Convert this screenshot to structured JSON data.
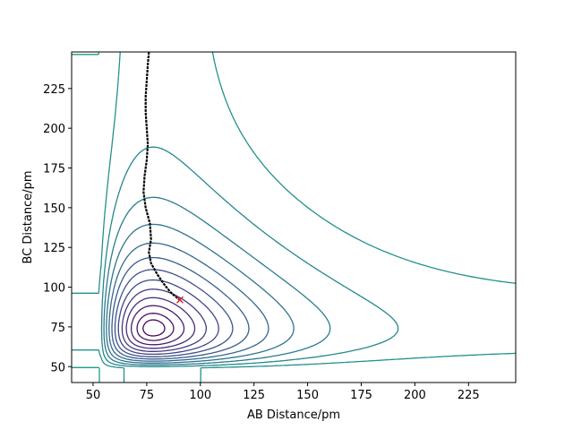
{
  "chart_data": {
    "type": "contour",
    "title": "",
    "xlabel": "AB Distance/pm",
    "ylabel": "BC Distance/pm",
    "xlim": [
      40,
      247
    ],
    "ylim": [
      40,
      248
    ],
    "xticks": [
      50,
      75,
      100,
      125,
      150,
      175,
      200,
      225
    ],
    "yticks": [
      50,
      75,
      100,
      125,
      150,
      175,
      200,
      225
    ],
    "grid": false,
    "legend": "none",
    "contours": {
      "colormap": "viridis",
      "low_color": "#440154",
      "high_color": "#fde725",
      "levels": 25,
      "minimum": [
        78,
        74
      ]
    },
    "trajectory": {
      "color": "#000000",
      "points": [
        [
          76,
          248
        ],
        [
          75.5,
          240
        ],
        [
          75,
          230
        ],
        [
          74.5,
          220
        ],
        [
          74.5,
          210
        ],
        [
          75,
          200
        ],
        [
          75.5,
          190
        ],
        [
          75,
          180
        ],
        [
          74,
          170
        ],
        [
          73.5,
          160
        ],
        [
          74.5,
          150
        ],
        [
          76.5,
          140
        ],
        [
          77,
          130
        ],
        [
          76,
          122
        ],
        [
          77,
          115
        ],
        [
          80,
          108
        ],
        [
          83,
          102
        ],
        [
          86,
          97
        ],
        [
          88.5,
          94
        ],
        [
          90.5,
          92
        ]
      ]
    },
    "marker": {
      "color": "#d62728",
      "symbol": "x",
      "point": [
        90.5,
        92
      ]
    }
  }
}
